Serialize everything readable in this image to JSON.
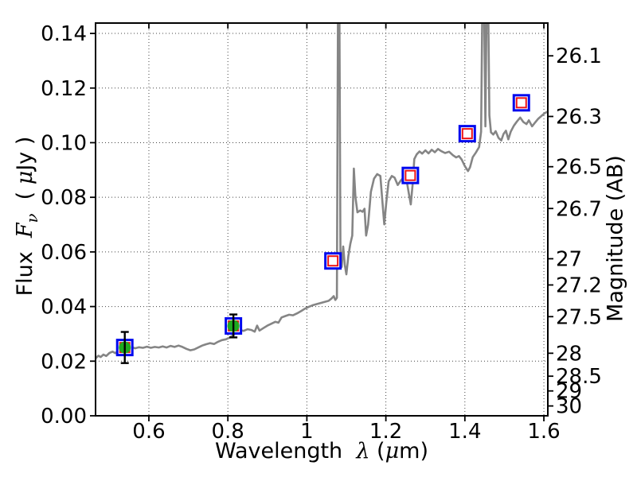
{
  "chart_data": {
    "type": "line",
    "title": "",
    "axis_labels": {
      "x": {
        "word": "Wavelength  ",
        "symbol": "λ",
        "unit_open": " (",
        "unit_mu": "μ",
        "unit_close": "m)"
      },
      "y_left": {
        "word": "Flux  ",
        "symbol": "F",
        "sub": "ν",
        "unit_open": "  ( ",
        "unit_mu": "μ",
        "unit_close": "Jy )"
      },
      "y_right": "Magnitude (AB)"
    },
    "xlim": [
      0.465,
      1.61
    ],
    "ylim": [
      0,
      0.1438
    ],
    "grid": true,
    "legend": "none",
    "colors": {
      "spectrum": "#858585",
      "circle_fill": "#1faa1f",
      "square_outer_edge": "#0008ee",
      "square_inner_edge": "#ee1515",
      "square_face": "#ffffff",
      "errorbar": "#000000",
      "grid": "#444444",
      "frame": "#000000",
      "background": "#ffffff"
    },
    "x_ticks": [
      {
        "value": 0.6,
        "label": "0.6"
      },
      {
        "value": 0.8,
        "label": "0.8"
      },
      {
        "value": 1.0,
        "label": "1"
      },
      {
        "value": 1.2,
        "label": "1.2"
      },
      {
        "value": 1.4,
        "label": "1.4"
      },
      {
        "value": 1.6,
        "label": "1.6"
      }
    ],
    "y_ticks_left": [
      {
        "value": 0.0,
        "label": "0.00"
      },
      {
        "value": 0.02,
        "label": "0.02"
      },
      {
        "value": 0.04,
        "label": "0.04"
      },
      {
        "value": 0.06,
        "label": "0.06"
      },
      {
        "value": 0.08,
        "label": "0.08"
      },
      {
        "value": 0.1,
        "label": "0.10"
      },
      {
        "value": 0.12,
        "label": "0.12"
      },
      {
        "value": 0.14,
        "label": "0.14"
      }
    ],
    "y_ticks_right": [
      {
        "label": "26.1",
        "flux": 0.1318
      },
      {
        "label": "26.3",
        "flux": 0.1096
      },
      {
        "label": "26.5",
        "flux": 0.0912
      },
      {
        "label": "26.7",
        "flux": 0.0759
      },
      {
        "label": "27",
        "flux": 0.0575
      },
      {
        "label": "27.2",
        "flux": 0.0479
      },
      {
        "label": "27.5",
        "flux": 0.0363
      },
      {
        "label": "28",
        "flux": 0.0229
      },
      {
        "label": "28.5",
        "flux": 0.0145
      },
      {
        "label": "29",
        "flux": 0.0091
      },
      {
        "label": "30",
        "flux": 0.0036
      }
    ],
    "series": [
      {
        "name": "model-spectrum",
        "type": "line",
        "points": [
          [
            0.465,
            0.021
          ],
          [
            0.472,
            0.022
          ],
          [
            0.478,
            0.0215
          ],
          [
            0.485,
            0.0224
          ],
          [
            0.492,
            0.0219
          ],
          [
            0.5,
            0.023
          ],
          [
            0.508,
            0.0235
          ],
          [
            0.515,
            0.0229
          ],
          [
            0.522,
            0.0238
          ],
          [
            0.53,
            0.0242
          ],
          [
            0.54,
            0.0247
          ],
          [
            0.548,
            0.0243
          ],
          [
            0.556,
            0.0252
          ],
          [
            0.565,
            0.0247
          ],
          [
            0.575,
            0.0251
          ],
          [
            0.585,
            0.0249
          ],
          [
            0.595,
            0.0253
          ],
          [
            0.605,
            0.0249
          ],
          [
            0.615,
            0.0252
          ],
          [
            0.625,
            0.025
          ],
          [
            0.635,
            0.0254
          ],
          [
            0.645,
            0.025
          ],
          [
            0.655,
            0.0256
          ],
          [
            0.665,
            0.0252
          ],
          [
            0.675,
            0.0257
          ],
          [
            0.685,
            0.0252
          ],
          [
            0.695,
            0.0245
          ],
          [
            0.705,
            0.024
          ],
          [
            0.715,
            0.0243
          ],
          [
            0.725,
            0.025
          ],
          [
            0.735,
            0.0257
          ],
          [
            0.745,
            0.0262
          ],
          [
            0.755,
            0.0266
          ],
          [
            0.765,
            0.0263
          ],
          [
            0.775,
            0.0271
          ],
          [
            0.785,
            0.0277
          ],
          [
            0.795,
            0.028
          ],
          [
            0.805,
            0.0287
          ],
          [
            0.815,
            0.0297
          ],
          [
            0.822,
            0.0308
          ],
          [
            0.83,
            0.0314
          ],
          [
            0.84,
            0.0311
          ],
          [
            0.85,
            0.0317
          ],
          [
            0.86,
            0.0314
          ],
          [
            0.868,
            0.0308
          ],
          [
            0.874,
            0.033
          ],
          [
            0.88,
            0.0312
          ],
          [
            0.89,
            0.0321
          ],
          [
            0.9,
            0.033
          ],
          [
            0.91,
            0.0337
          ],
          [
            0.92,
            0.0344
          ],
          [
            0.928,
            0.0341
          ],
          [
            0.936,
            0.036
          ],
          [
            0.945,
            0.0365
          ],
          [
            0.955,
            0.037
          ],
          [
            0.965,
            0.0368
          ],
          [
            0.975,
            0.0375
          ],
          [
            0.985,
            0.0383
          ],
          [
            0.995,
            0.0392
          ],
          [
            1.005,
            0.0399
          ],
          [
            1.015,
            0.0405
          ],
          [
            1.025,
            0.0409
          ],
          [
            1.035,
            0.0413
          ],
          [
            1.045,
            0.0417
          ],
          [
            1.055,
            0.0421
          ],
          [
            1.063,
            0.043
          ],
          [
            1.068,
            0.0438
          ],
          [
            1.072,
            0.0424
          ],
          [
            1.076,
            0.0432
          ],
          [
            1.079,
            0.16
          ],
          [
            1.082,
            0.16
          ],
          [
            1.085,
            0.056
          ],
          [
            1.088,
            0.0545
          ],
          [
            1.092,
            0.062
          ],
          [
            1.096,
            0.0553
          ],
          [
            1.1,
            0.0518
          ],
          [
            1.105,
            0.0585
          ],
          [
            1.11,
            0.063
          ],
          [
            1.115,
            0.066
          ],
          [
            1.119,
            0.0905
          ],
          [
            1.123,
            0.08
          ],
          [
            1.128,
            0.0745
          ],
          [
            1.135,
            0.0752
          ],
          [
            1.141,
            0.0747
          ],
          [
            1.146,
            0.0758
          ],
          [
            1.15,
            0.066
          ],
          [
            1.155,
            0.07
          ],
          [
            1.162,
            0.082
          ],
          [
            1.17,
            0.0868
          ],
          [
            1.178,
            0.0885
          ],
          [
            1.186,
            0.0878
          ],
          [
            1.191,
            0.079
          ],
          [
            1.196,
            0.0701
          ],
          [
            1.201,
            0.078
          ],
          [
            1.207,
            0.0858
          ],
          [
            1.215,
            0.0878
          ],
          [
            1.222,
            0.0872
          ],
          [
            1.23,
            0.0845
          ],
          [
            1.238,
            0.0862
          ],
          [
            1.246,
            0.0874
          ],
          [
            1.253,
            0.0858
          ],
          [
            1.258,
            0.0815
          ],
          [
            1.263,
            0.0774
          ],
          [
            1.268,
            0.085
          ],
          [
            1.272,
            0.094
          ],
          [
            1.278,
            0.0957
          ],
          [
            1.285,
            0.0968
          ],
          [
            1.292,
            0.096
          ],
          [
            1.3,
            0.0972
          ],
          [
            1.308,
            0.0961
          ],
          [
            1.316,
            0.0974
          ],
          [
            1.324,
            0.0965
          ],
          [
            1.332,
            0.0977
          ],
          [
            1.34,
            0.0969
          ],
          [
            1.35,
            0.0962
          ],
          [
            1.36,
            0.0967
          ],
          [
            1.37,
            0.0954
          ],
          [
            1.378,
            0.0946
          ],
          [
            1.385,
            0.0951
          ],
          [
            1.392,
            0.0938
          ],
          [
            1.4,
            0.0914
          ],
          [
            1.408,
            0.0896
          ],
          [
            1.413,
            0.091
          ],
          [
            1.42,
            0.0947
          ],
          [
            1.428,
            0.0964
          ],
          [
            1.436,
            0.0984
          ],
          [
            1.441,
            0.104
          ],
          [
            1.445,
            0.16
          ],
          [
            1.448,
            0.16
          ],
          [
            1.452,
            0.106
          ],
          [
            1.4555,
            0.16
          ],
          [
            1.4585,
            0.16
          ],
          [
            1.462,
            0.11
          ],
          [
            1.466,
            0.1038
          ],
          [
            1.472,
            0.103
          ],
          [
            1.478,
            0.1042
          ],
          [
            1.485,
            0.1018
          ],
          [
            1.492,
            0.1008
          ],
          [
            1.498,
            0.1032
          ],
          [
            1.504,
            0.1044
          ],
          [
            1.51,
            0.1012
          ],
          [
            1.516,
            0.104
          ],
          [
            1.524,
            0.1062
          ],
          [
            1.532,
            0.1078
          ],
          [
            1.54,
            0.1092
          ],
          [
            1.548,
            0.1076
          ],
          [
            1.556,
            0.1068
          ],
          [
            1.562,
            0.1082
          ],
          [
            1.57,
            0.106
          ],
          [
            1.578,
            0.1074
          ],
          [
            1.586,
            0.1088
          ],
          [
            1.594,
            0.1098
          ],
          [
            1.602,
            0.1108
          ],
          [
            1.61,
            0.1114
          ]
        ]
      },
      {
        "name": "model-photometry-squares",
        "type": "scatter",
        "marker": "square-in-square",
        "points": [
          {
            "x": 0.539,
            "y": 0.025
          },
          {
            "x": 0.814,
            "y": 0.0329
          },
          {
            "x": 1.066,
            "y": 0.0567
          },
          {
            "x": 1.262,
            "y": 0.088
          },
          {
            "x": 1.406,
            "y": 0.1033
          },
          {
            "x": 1.543,
            "y": 0.1146
          }
        ]
      },
      {
        "name": "observed-photometry-circles",
        "type": "scatter",
        "marker": "circle-with-errorbar",
        "points": [
          {
            "x": 0.539,
            "y": 0.025,
            "yerr": 0.0057
          },
          {
            "x": 0.814,
            "y": 0.0329,
            "yerr": 0.0042
          }
        ]
      }
    ]
  }
}
